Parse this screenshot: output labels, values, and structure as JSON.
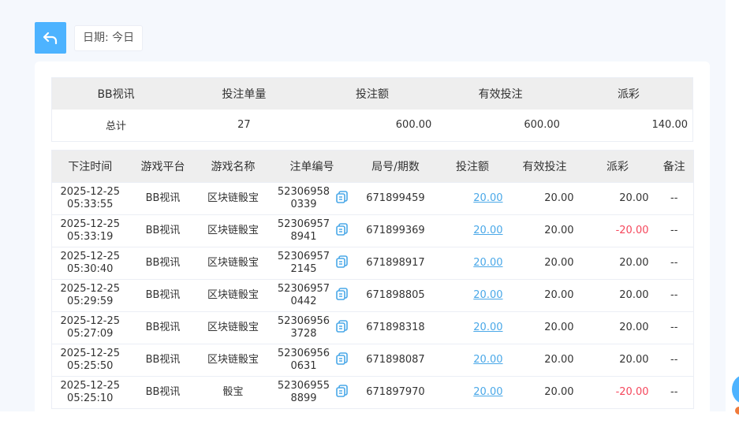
{
  "toolbar": {
    "back_icon": "undo-arrow-icon",
    "date_label": "日期: 今日"
  },
  "summary": {
    "headers": [
      "BB视讯",
      "投注单量",
      "投注额",
      "有效投注",
      "派彩"
    ],
    "row": [
      "总计",
      "27",
      "600.00",
      "600.00",
      "140.00"
    ]
  },
  "detail": {
    "headers": [
      "下注时间",
      "游戏平台",
      "游戏名称",
      "注单编号",
      "局号/期数",
      "投注额",
      "有效投注",
      "派彩",
      "备注"
    ],
    "rows": [
      {
        "date": "2025-12-25",
        "time": "05:33:55",
        "platform": "BB视讯",
        "game": "区块链骰宝",
        "order": "523069580339",
        "round": "671899459",
        "bet": "20.00",
        "valid": "20.00",
        "payout": "20.00",
        "note": "--"
      },
      {
        "date": "2025-12-25",
        "time": "05:33:19",
        "platform": "BB视讯",
        "game": "区块链骰宝",
        "order": "523069578941",
        "round": "671899369",
        "bet": "20.00",
        "valid": "20.00",
        "payout": "-20.00",
        "note": "--"
      },
      {
        "date": "2025-12-25",
        "time": "05:30:40",
        "platform": "BB视讯",
        "game": "区块链骰宝",
        "order": "523069572145",
        "round": "671898917",
        "bet": "20.00",
        "valid": "20.00",
        "payout": "20.00",
        "note": "--"
      },
      {
        "date": "2025-12-25",
        "time": "05:29:59",
        "platform": "BB视讯",
        "game": "区块链骰宝",
        "order": "523069570442",
        "round": "671898805",
        "bet": "20.00",
        "valid": "20.00",
        "payout": "20.00",
        "note": "--"
      },
      {
        "date": "2025-12-25",
        "time": "05:27:09",
        "platform": "BB视讯",
        "game": "区块链骰宝",
        "order": "523069563728",
        "round": "671898318",
        "bet": "20.00",
        "valid": "20.00",
        "payout": "20.00",
        "note": "--"
      },
      {
        "date": "2025-12-25",
        "time": "05:25:50",
        "platform": "BB视讯",
        "game": "区块链骰宝",
        "order": "523069560631",
        "round": "671898087",
        "bet": "20.00",
        "valid": "20.00",
        "payout": "20.00",
        "note": "--"
      },
      {
        "date": "2025-12-25",
        "time": "05:25:10",
        "platform": "BB视讯",
        "game": "骰宝",
        "order": "523069558899",
        "round": "671897970",
        "bet": "20.00",
        "valid": "20.00",
        "payout": "-20.00",
        "note": "--"
      }
    ]
  },
  "colors": {
    "accent": "#4db3ff",
    "negative": "#f5475c",
    "link": "#4aa8e8"
  }
}
